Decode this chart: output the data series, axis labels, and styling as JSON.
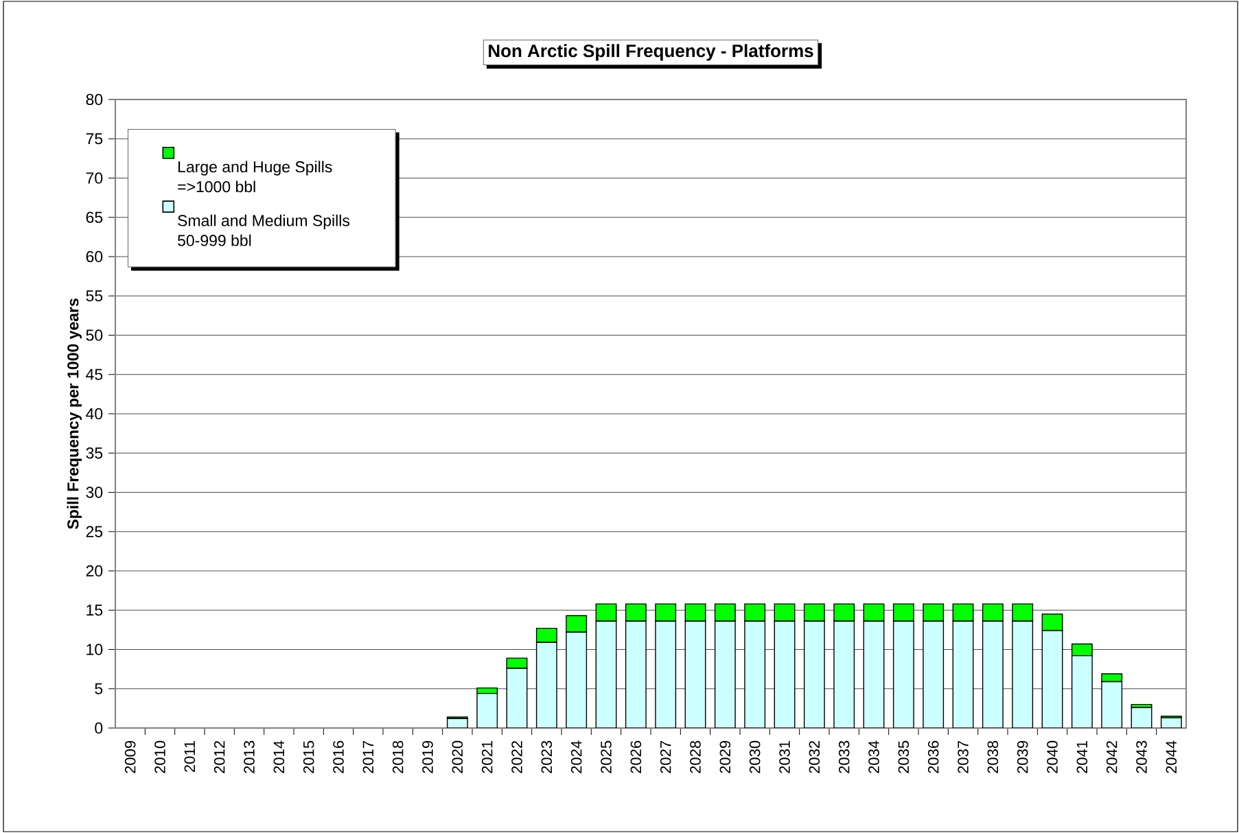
{
  "chart_data": {
    "type": "bar",
    "stacked": true,
    "title": "Non Arctic Spill Frequency - Platforms",
    "ylabel": "Spill Frequency per 1000 years",
    "categories": [
      "2009",
      "2010",
      "2011",
      "2012",
      "2013",
      "2014",
      "2015",
      "2016",
      "2017",
      "2018",
      "2019",
      "2020",
      "2021",
      "2022",
      "2023",
      "2024",
      "2025",
      "2026",
      "2027",
      "2028",
      "2029",
      "2030",
      "2031",
      "2032",
      "2033",
      "2034",
      "2035",
      "2036",
      "2037",
      "2038",
      "2039",
      "2040",
      "2041",
      "2042",
      "2043",
      "2044"
    ],
    "series": [
      {
        "name": "Small and Medium Spills 50-999 bbl",
        "color": "#ccffff",
        "values": [
          0,
          0,
          0,
          0,
          0,
          0,
          0,
          0,
          0,
          0,
          0,
          1.2,
          4.4,
          7.6,
          10.9,
          12.2,
          13.6,
          13.6,
          13.6,
          13.6,
          13.6,
          13.6,
          13.6,
          13.6,
          13.6,
          13.6,
          13.6,
          13.6,
          13.6,
          13.6,
          13.6,
          12.4,
          9.2,
          5.9,
          2.6,
          1.3
        ]
      },
      {
        "name": "Large and Huge Spills =>1000 bbl",
        "color": "#00ff00",
        "values": [
          0,
          0,
          0,
          0,
          0,
          0,
          0,
          0,
          0,
          0,
          0,
          0.2,
          0.7,
          1.3,
          1.8,
          2.1,
          2.2,
          2.2,
          2.2,
          2.2,
          2.2,
          2.2,
          2.2,
          2.2,
          2.2,
          2.2,
          2.2,
          2.2,
          2.2,
          2.2,
          2.2,
          2.1,
          1.5,
          1.0,
          0.4,
          0.2
        ]
      }
    ],
    "ylim": [
      0,
      80
    ],
    "yticks": [
      0,
      5,
      10,
      15,
      20,
      25,
      30,
      35,
      40,
      45,
      50,
      55,
      60,
      65,
      70,
      75,
      80
    ],
    "grid": "y",
    "legend": "top left"
  }
}
